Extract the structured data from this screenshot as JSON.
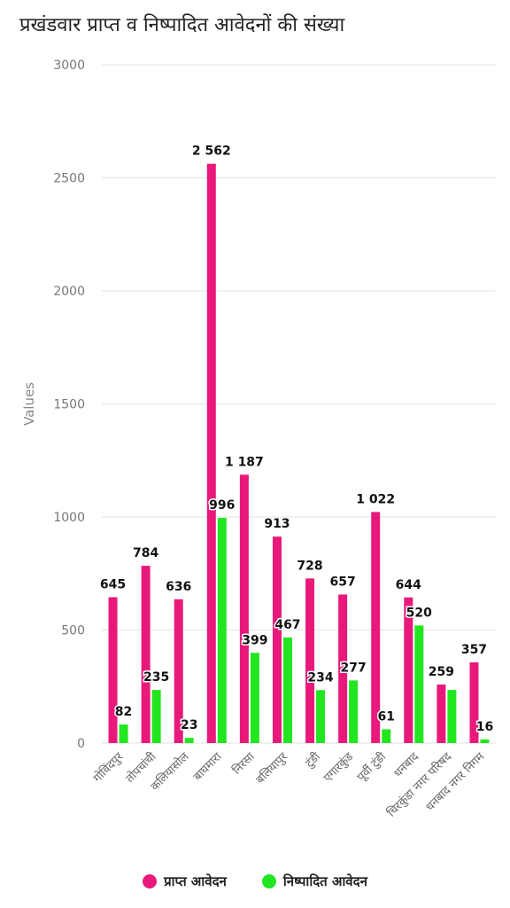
{
  "chart_data": {
    "type": "bar",
    "title": "प्रखंडवार प्राप्त व निष्पादित आवेदनों की संख्या",
    "ylabel": "Values",
    "ylim": [
      0,
      3000
    ],
    "yticks": [
      "0",
      "500",
      "1000",
      "1500",
      "2000",
      "2500",
      "3000"
    ],
    "categories": [
      "गोविंदपुर",
      "तोपचांची",
      "कलियासोल",
      "बाघमारा",
      "निरसा",
      "बलियापुर",
      "टुंडी",
      "एगारकुंड",
      "पूर्वी टुंडी",
      "धनबाद",
      "चिरकुंडा नगर परिषद",
      "धनबाद नगर निगम"
    ],
    "series": [
      {
        "name": "प्राप्त आवेदन",
        "color": "#e8197a",
        "values": [
          645,
          784,
          636,
          2562,
          1187,
          913,
          728,
          657,
          1022,
          644,
          259,
          357
        ],
        "labels": [
          "645",
          "784",
          "636",
          "2 562",
          "1 187",
          "913",
          "728",
          "657",
          "1 022",
          "644",
          "259",
          "357"
        ]
      },
      {
        "name": "निष्पादित आवेदन",
        "color": "#22e61f",
        "values": [
          82,
          235,
          23,
          996,
          399,
          467,
          234,
          277,
          61,
          520,
          235,
          16
        ],
        "labels": [
          "82",
          "235",
          "23",
          "996",
          "399",
          "467",
          "234",
          "277",
          "61",
          "520",
          "",
          "16"
        ]
      }
    ],
    "grid": true,
    "legend_position": "bottom"
  }
}
